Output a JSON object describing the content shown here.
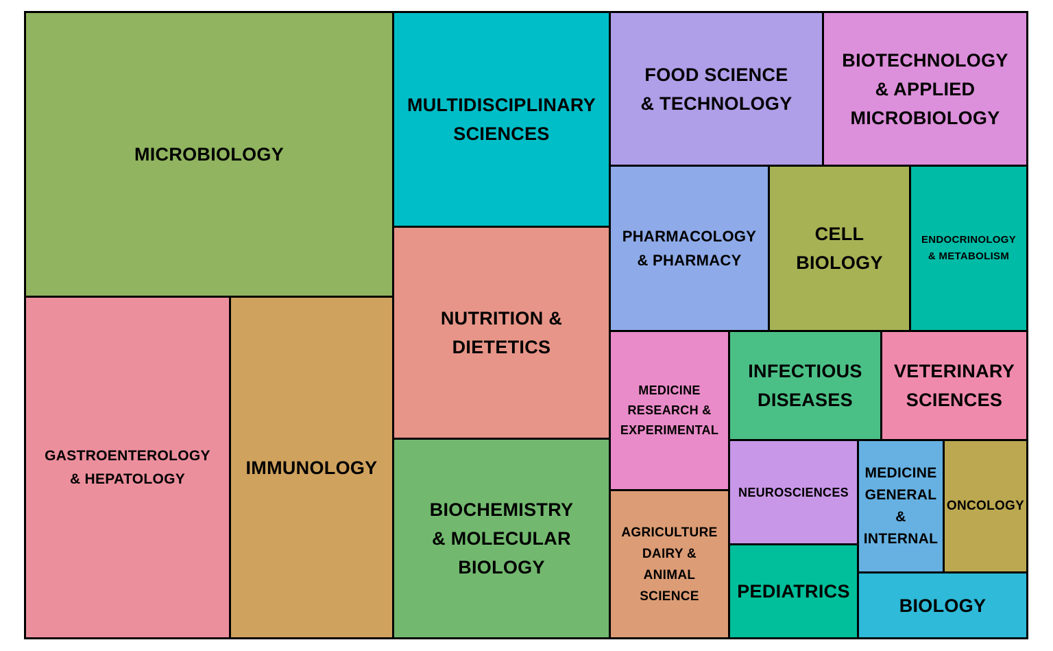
{
  "chart_data": {
    "type": "treemap",
    "tiles": [
      {
        "label": "MICROBIOLOGY",
        "color": "#90b45f"
      },
      {
        "label": "GASTROENTEROLOGY\n& HEPATOLOGY",
        "color": "#ec8f9d"
      },
      {
        "label": "IMMUNOLOGY",
        "color": "#cfa25e"
      },
      {
        "label": "MULTIDISCIPLINARY\nSCIENCES",
        "color": "#00bec8"
      },
      {
        "label": "NUTRITION &\nDIETETICS",
        "color": "#e79588"
      },
      {
        "label": "BIOCHEMISTRY\n& MOLECULAR\nBIOLOGY",
        "color": "#72b96f"
      },
      {
        "label": "FOOD SCIENCE\n& TECHNOLOGY",
        "color": "#af9ee8"
      },
      {
        "label": "BIOTECHNOLOGY\n& APPLIED\nMICROBIOLOGY",
        "color": "#dc8fda"
      },
      {
        "label": "PHARMACOLOGY\n& PHARMACY",
        "color": "#8eaae8"
      },
      {
        "label": "CELL\nBIOLOGY",
        "color": "#a7b254"
      },
      {
        "label": "ENDOCRINOLOGY\n& METABOLISM",
        "color": "#00bba6"
      },
      {
        "label": "MEDICINE\nRESEARCH &\nEXPERIMENTAL",
        "color": "#e98bc8"
      },
      {
        "label": "INFECTIOUS\nDISEASES",
        "color": "#4bc086"
      },
      {
        "label": "VETERINARY\nSCIENCES",
        "color": "#f08aac"
      },
      {
        "label": "AGRICULTURE\nDAIRY &\nANIMAL\nSCIENCE",
        "color": "#dc9c75"
      },
      {
        "label": "NEUROSCIENCES",
        "color": "#c897e8"
      },
      {
        "label": "MEDICINE\nGENERAL\n&\nINTERNAL",
        "color": "#66b1e2"
      },
      {
        "label": "ONCOLOGY",
        "color": "#bca850"
      },
      {
        "label": "PEDIATRICS",
        "color": "#00bf9a"
      },
      {
        "label": "BIOLOGY",
        "color": "#2ebad8"
      }
    ]
  }
}
